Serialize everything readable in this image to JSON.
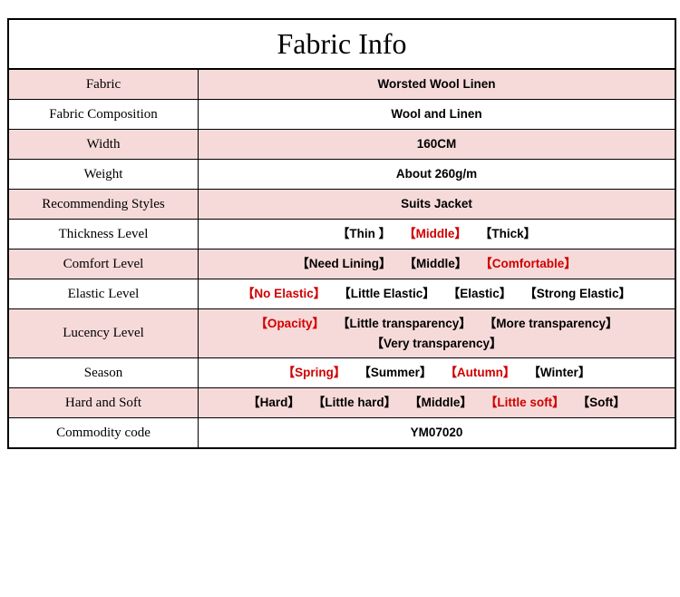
{
  "title": "Fabric Info",
  "colors": {
    "row_bg": "#f6dad9",
    "alt_bg": "#ffffff",
    "border": "#000000",
    "selected": "#d00000",
    "text": "#000000"
  },
  "rows": [
    {
      "label": "Fabric",
      "type": "text",
      "value": "Worsted Wool Linen",
      "alt": false
    },
    {
      "label": "Fabric Composition",
      "type": "text",
      "value": "Wool and Linen",
      "alt": true
    },
    {
      "label": "Width",
      "type": "text",
      "value": "160CM",
      "alt": false
    },
    {
      "label": "Weight",
      "type": "text",
      "value": "About 260g/m",
      "alt": true
    },
    {
      "label": "Recommending Styles",
      "type": "text",
      "value": "Suits Jacket",
      "alt": false
    },
    {
      "label": "Thickness Level",
      "type": "options",
      "alt": true,
      "options": [
        {
          "text": "Thin ",
          "selected": false
        },
        {
          "text": "Middle",
          "selected": true
        },
        {
          "text": "Thick",
          "selected": false
        }
      ]
    },
    {
      "label": "Comfort Level",
      "type": "options",
      "alt": false,
      "options": [
        {
          "text": "Need Lining",
          "selected": false
        },
        {
          "text": "Middle",
          "selected": false
        },
        {
          "text": "Comfortable",
          "selected": true
        }
      ]
    },
    {
      "label": "Elastic Level",
      "type": "options",
      "alt": true,
      "options": [
        {
          "text": "No Elastic",
          "selected": true
        },
        {
          "text": "Little Elastic",
          "selected": false
        },
        {
          "text": "Elastic",
          "selected": false
        },
        {
          "text": "Strong Elastic",
          "selected": false
        }
      ]
    },
    {
      "label": "Lucency Level",
      "type": "options",
      "alt": false,
      "options": [
        {
          "text": "Opacity",
          "selected": true
        },
        {
          "text": "Little transparency",
          "selected": false
        },
        {
          "text": "More transparency",
          "selected": false
        },
        {
          "text": "Very transparency",
          "selected": false
        }
      ]
    },
    {
      "label": "Season",
      "type": "options",
      "alt": true,
      "options": [
        {
          "text": "Spring",
          "selected": true
        },
        {
          "text": "Summer",
          "selected": false
        },
        {
          "text": "Autumn",
          "selected": true
        },
        {
          "text": "Winter",
          "selected": false
        }
      ]
    },
    {
      "label": "Hard and Soft",
      "type": "options",
      "alt": false,
      "options": [
        {
          "text": "Hard",
          "selected": false
        },
        {
          "text": "Little hard",
          "selected": false
        },
        {
          "text": "Middle",
          "selected": false
        },
        {
          "text": "Little soft",
          "selected": true
        },
        {
          "text": "Soft",
          "selected": false
        }
      ]
    },
    {
      "label": "Commodity code",
      "type": "text",
      "value": "YM07020",
      "alt": true
    }
  ],
  "brackets": {
    "open": "【",
    "close": "】"
  }
}
